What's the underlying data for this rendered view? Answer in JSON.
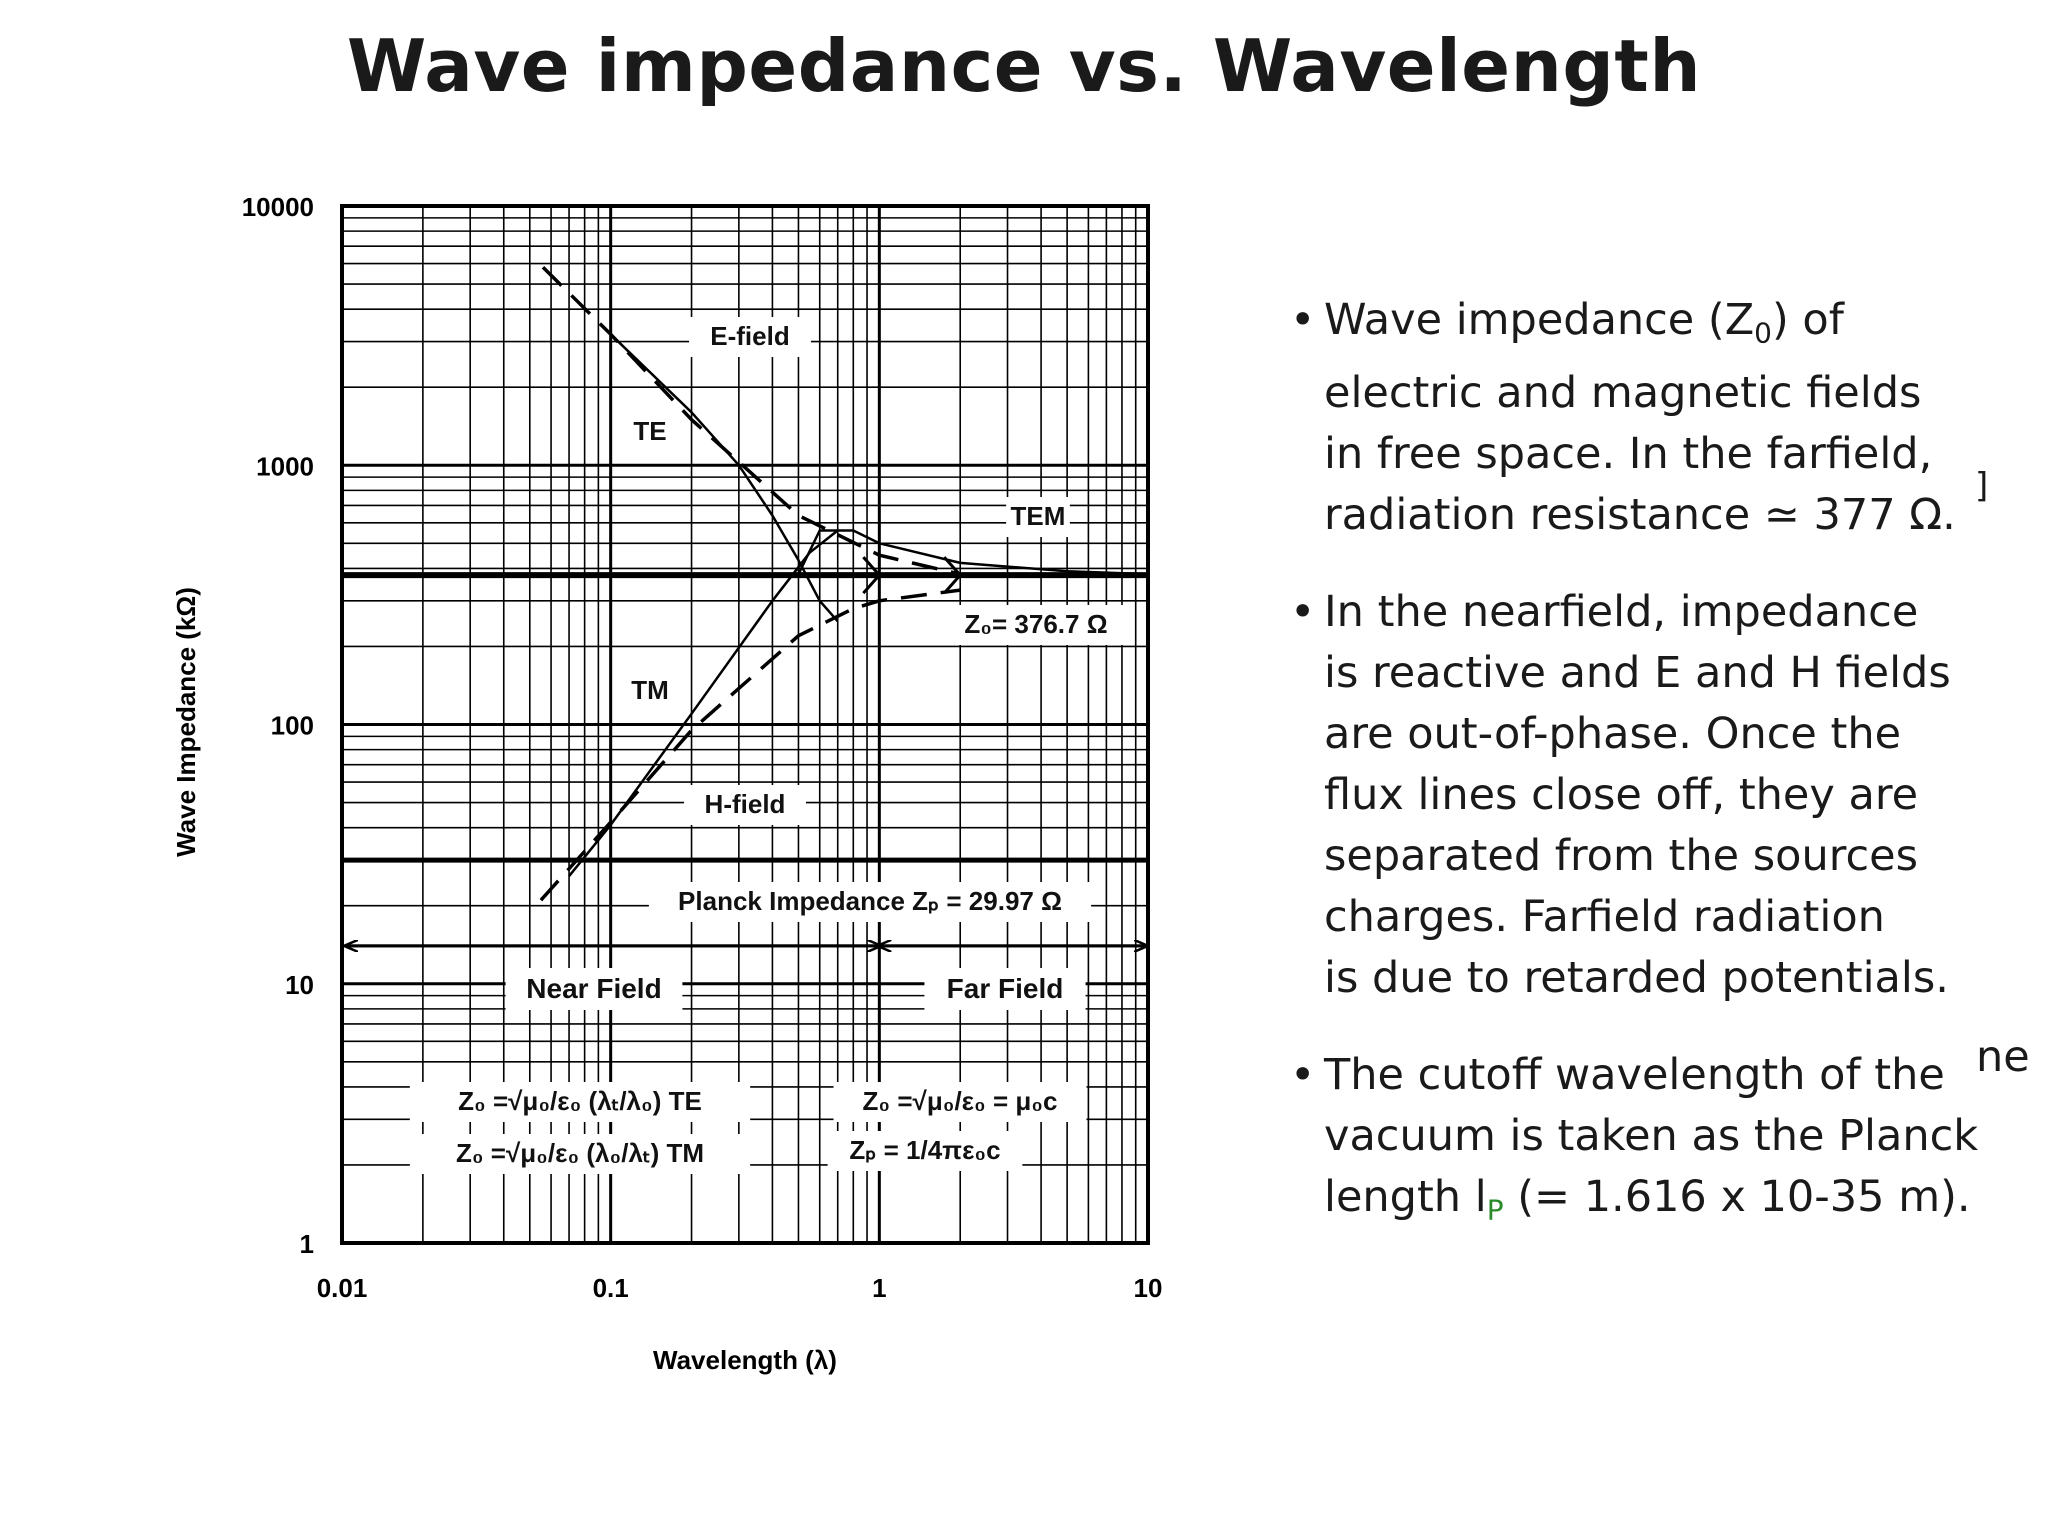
{
  "title": "Wave impedance vs. Wavelength",
  "chart_data": {
    "type": "line",
    "x_scale": "log",
    "y_scale": "log",
    "xlim": [
      0.01,
      10
    ],
    "ylim": [
      1,
      10000
    ],
    "xlabel": "Wavelength  (λ)",
    "ylabel": "Wave Impedance  (kΩ)",
    "xticks": [
      "0.01",
      "0.1",
      "1",
      "10"
    ],
    "yticks": [
      "1",
      "10",
      "100",
      "1000",
      "10000"
    ],
    "grid": true,
    "series": [
      {
        "name": "E-field",
        "style": "dashed",
        "x": [
          0.056,
          0.1,
          0.2,
          0.5,
          1.0,
          2.0
        ],
        "y": [
          5800,
          3200,
          1500,
          640,
          450,
          380
        ]
      },
      {
        "name": "TE",
        "style": "solid",
        "x": [
          0.1,
          0.2,
          0.3,
          0.4,
          0.5,
          0.6,
          0.7
        ],
        "y": [
          3200,
          1600,
          1000,
          640,
          430,
          300,
          250
        ]
      },
      {
        "name": "TEM",
        "style": "solid",
        "x": [
          0.5,
          0.6,
          0.8,
          1.0,
          2.0,
          5.0,
          10.0
        ],
        "y": [
          380,
          560,
          560,
          500,
          420,
          390,
          380
        ]
      },
      {
        "name": "TM",
        "style": "solid",
        "x": [
          0.07,
          0.1,
          0.2,
          0.4,
          0.55,
          0.7
        ],
        "y": [
          26,
          41,
          110,
          300,
          460,
          560
        ]
      },
      {
        "name": "H-field",
        "style": "dashed",
        "x": [
          0.055,
          0.1,
          0.2,
          0.5,
          0.8,
          1.0,
          2.0
        ],
        "y": [
          21,
          42,
          95,
          220,
          280,
          300,
          330
        ]
      },
      {
        "name": "Z₀ = 376.7 Ω",
        "style": "solid",
        "x": [
          0.01,
          10
        ],
        "y": [
          376.7,
          376.7
        ]
      },
      {
        "name": "Planck Impedance Zₚ = 29.97 Ω",
        "style": "solid",
        "x": [
          0.01,
          10
        ],
        "y": [
          29.97,
          29.97
        ]
      }
    ],
    "annotations": {
      "e_field": "E-field",
      "te": "TE",
      "tem": "TEM",
      "z0": "Z₀= 376.7 Ω",
      "tm": "TM",
      "h_field": "H-field",
      "planck": "Planck Impedance Zₚ = 29.97 Ω",
      "near_field": "Near Field",
      "far_field": "Far Field",
      "formula_te": "Z₀ =√μ₀/ε₀ (λₜ/λ₀)  TE",
      "formula_tm": "Z₀ =√μ₀/ε₀ (λ₀/λₜ)  TM",
      "formula_z0": "Z₀ =√μ₀/ε₀ = μ₀c",
      "formula_zp": "Zₚ = 1/4πε₀c"
    }
  },
  "bullets": [
    {
      "lines": [
        "Wave impedance (Z",
        "electric and magnetic fields",
        "in free space.  In the farfield,",
        "radiation resistance ≃ 377 Ω."
      ],
      "sub": "0",
      "after_sub": ") of"
    },
    {
      "lines": [
        "In the nearfield, impedance",
        "is reactive and E and H fields",
        "are out-of-phase.  Once the",
        "flux lines close off, they are",
        "separated from the sources",
        "charges.  Farfield radiation",
        "is due to retarded potentials."
      ]
    },
    {
      "lines": [
        "The cutoff wavelength  of the",
        "vacuum is taken as the Planck",
        "length l",
        "(= 1.616 x 10-35 m)."
      ],
      "sub": "P"
    }
  ],
  "stray_text": [
    "]",
    "ne"
  ]
}
